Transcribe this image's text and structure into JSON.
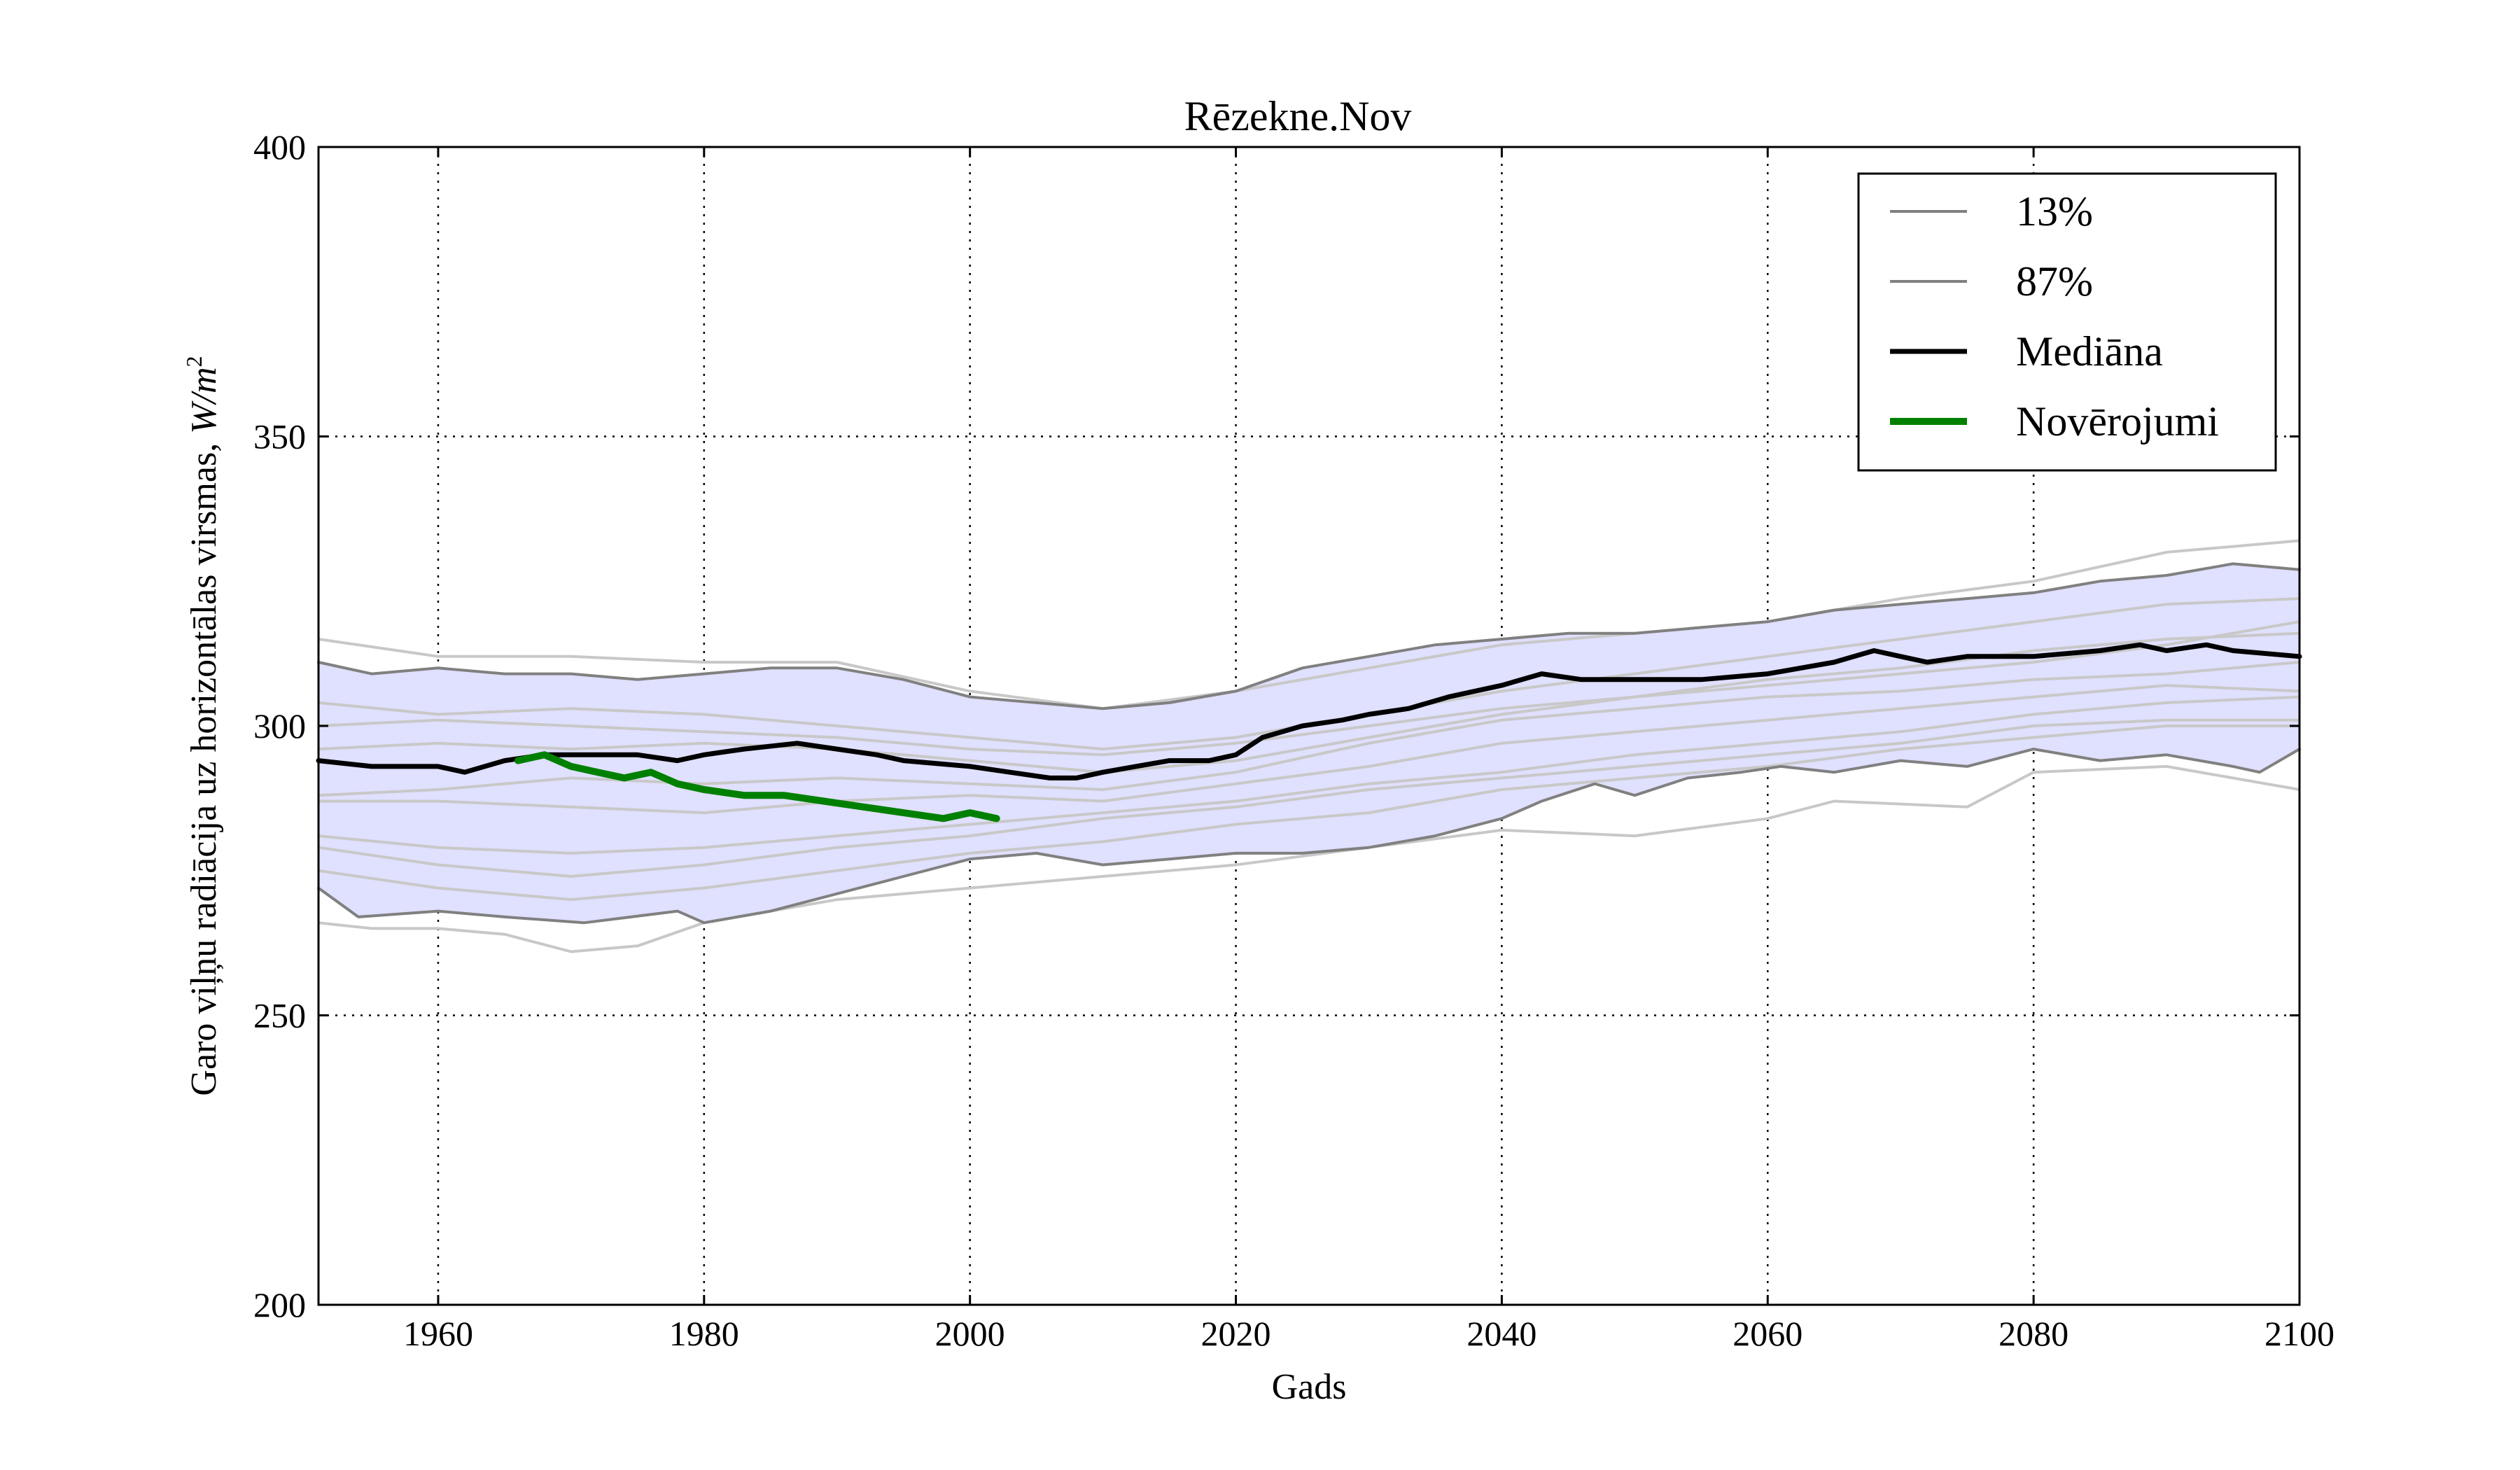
{
  "chart_data": {
    "type": "line",
    "title": "Rēzekne.Nov",
    "xlabel": "Gads",
    "ylabel": "Garo viļņu radiācija uz horizontālas virsmas, W/m²",
    "ylabel_text": "Garo viļņu radiācija uz horizontālas virsmas, ",
    "ylabel_unit": "W/m",
    "ylabel_exp": "2",
    "xlim": [
      1951,
      2100
    ],
    "ylim": [
      200,
      400
    ],
    "xticks": [
      1960,
      1980,
      2000,
      2020,
      2040,
      2060,
      2080,
      2100
    ],
    "yticks": [
      200,
      250,
      300,
      350,
      400
    ],
    "xtick_labels": [
      "1960",
      "1980",
      "2000",
      "2020",
      "2040",
      "2060",
      "2080",
      "2100"
    ],
    "ytick_labels": [
      "200",
      "250",
      "300",
      "350",
      "400"
    ],
    "grid": true,
    "legend_position": "top-right",
    "legend": [
      {
        "label": "13%",
        "color": "#808080"
      },
      {
        "label": "87%",
        "color": "#808080"
      },
      {
        "label": "Mediāna",
        "color": "#000000"
      },
      {
        "label": "Novērojumi",
        "color": "#008000"
      }
    ],
    "colors": {
      "band_fill": "#e0e0ff",
      "ensemble_line": "#c8c8c8",
      "percentile_line": "#808080",
      "median": "#000000",
      "observations": "#008000"
    },
    "series": [
      {
        "name": "13%",
        "points": [
          [
            1951,
            272
          ],
          [
            1954,
            267
          ],
          [
            1960,
            268
          ],
          [
            1965,
            267
          ],
          [
            1971,
            266
          ],
          [
            1978,
            268
          ],
          [
            1980,
            266
          ],
          [
            1985,
            268
          ],
          [
            1990,
            271
          ],
          [
            1995,
            274
          ],
          [
            2000,
            277
          ],
          [
            2005,
            278
          ],
          [
            2010,
            276
          ],
          [
            2015,
            277
          ],
          [
            2020,
            278
          ],
          [
            2025,
            278
          ],
          [
            2030,
            279
          ],
          [
            2035,
            281
          ],
          [
            2040,
            284
          ],
          [
            2043,
            287
          ],
          [
            2047,
            290
          ],
          [
            2050,
            288
          ],
          [
            2054,
            291
          ],
          [
            2058,
            292
          ],
          [
            2061,
            293
          ],
          [
            2065,
            292
          ],
          [
            2070,
            294
          ],
          [
            2075,
            293
          ],
          [
            2080,
            296
          ],
          [
            2085,
            294
          ],
          [
            2090,
            295
          ],
          [
            2095,
            293
          ],
          [
            2097,
            292
          ],
          [
            2100,
            296
          ]
        ]
      },
      {
        "name": "87%",
        "points": [
          [
            1951,
            311
          ],
          [
            1955,
            309
          ],
          [
            1960,
            310
          ],
          [
            1965,
            309
          ],
          [
            1970,
            309
          ],
          [
            1975,
            308
          ],
          [
            1980,
            309
          ],
          [
            1985,
            310
          ],
          [
            1990,
            310
          ],
          [
            1995,
            308
          ],
          [
            2000,
            305
          ],
          [
            2005,
            304
          ],
          [
            2010,
            303
          ],
          [
            2015,
            304
          ],
          [
            2020,
            306
          ],
          [
            2025,
            310
          ],
          [
            2030,
            312
          ],
          [
            2035,
            314
          ],
          [
            2040,
            315
          ],
          [
            2045,
            316
          ],
          [
            2050,
            316
          ],
          [
            2055,
            317
          ],
          [
            2060,
            318
          ],
          [
            2065,
            320
          ],
          [
            2070,
            321
          ],
          [
            2075,
            322
          ],
          [
            2080,
            323
          ],
          [
            2085,
            325
          ],
          [
            2090,
            326
          ],
          [
            2095,
            328
          ],
          [
            2100,
            327
          ]
        ]
      },
      {
        "name": "Mediāna",
        "points": [
          [
            1951,
            294
          ],
          [
            1955,
            293
          ],
          [
            1960,
            293
          ],
          [
            1962,
            292
          ],
          [
            1965,
            294
          ],
          [
            1968,
            295
          ],
          [
            1970,
            295
          ],
          [
            1975,
            295
          ],
          [
            1978,
            294
          ],
          [
            1980,
            295
          ],
          [
            1983,
            296
          ],
          [
            1987,
            297
          ],
          [
            1990,
            296
          ],
          [
            1993,
            295
          ],
          [
            1995,
            294
          ],
          [
            2000,
            293
          ],
          [
            2003,
            292
          ],
          [
            2006,
            291
          ],
          [
            2008,
            291
          ],
          [
            2010,
            292
          ],
          [
            2015,
            294
          ],
          [
            2018,
            294
          ],
          [
            2020,
            295
          ],
          [
            2022,
            298
          ],
          [
            2025,
            300
          ],
          [
            2028,
            301
          ],
          [
            2030,
            302
          ],
          [
            2033,
            303
          ],
          [
            2036,
            305
          ],
          [
            2040,
            307
          ],
          [
            2043,
            309
          ],
          [
            2046,
            308
          ],
          [
            2050,
            308
          ],
          [
            2055,
            308
          ],
          [
            2060,
            309
          ],
          [
            2065,
            311
          ],
          [
            2068,
            313
          ],
          [
            2070,
            312
          ],
          [
            2072,
            311
          ],
          [
            2075,
            312
          ],
          [
            2078,
            312
          ],
          [
            2080,
            312
          ],
          [
            2085,
            313
          ],
          [
            2088,
            314
          ],
          [
            2090,
            313
          ],
          [
            2093,
            314
          ],
          [
            2095,
            313
          ],
          [
            2100,
            312
          ]
        ]
      },
      {
        "name": "Novērojumi",
        "points": [
          [
            1966,
            294
          ],
          [
            1968,
            295
          ],
          [
            1970,
            293
          ],
          [
            1972,
            292
          ],
          [
            1974,
            291
          ],
          [
            1976,
            292
          ],
          [
            1978,
            290
          ],
          [
            1980,
            289
          ],
          [
            1983,
            288
          ],
          [
            1986,
            288
          ],
          [
            1989,
            287
          ],
          [
            1992,
            286
          ],
          [
            1995,
            285
          ],
          [
            1998,
            284
          ],
          [
            2000,
            285
          ],
          [
            2002,
            284
          ]
        ]
      }
    ],
    "ensemble": [
      {
        "points": [
          [
            1951,
            315
          ],
          [
            1960,
            312
          ],
          [
            1970,
            312
          ],
          [
            1980,
            311
          ],
          [
            1990,
            311
          ],
          [
            2000,
            306
          ],
          [
            2010,
            303
          ],
          [
            2020,
            306
          ],
          [
            2030,
            310
          ],
          [
            2040,
            314
          ],
          [
            2050,
            316
          ],
          [
            2060,
            318
          ],
          [
            2070,
            322
          ],
          [
            2080,
            325
          ],
          [
            2090,
            330
          ],
          [
            2100,
            332
          ]
        ]
      },
      {
        "points": [
          [
            1951,
            304
          ],
          [
            1960,
            302
          ],
          [
            1970,
            303
          ],
          [
            1980,
            302
          ],
          [
            1990,
            300
          ],
          [
            2000,
            298
          ],
          [
            2010,
            296
          ],
          [
            2020,
            298
          ],
          [
            2030,
            302
          ],
          [
            2040,
            306
          ],
          [
            2050,
            309
          ],
          [
            2060,
            312
          ],
          [
            2070,
            315
          ],
          [
            2080,
            318
          ],
          [
            2090,
            321
          ],
          [
            2100,
            322
          ]
        ]
      },
      {
        "points": [
          [
            1951,
            300
          ],
          [
            1960,
            301
          ],
          [
            1970,
            300
          ],
          [
            1980,
            299
          ],
          [
            1990,
            298
          ],
          [
            2000,
            296
          ],
          [
            2010,
            295
          ],
          [
            2020,
            297
          ],
          [
            2030,
            300
          ],
          [
            2040,
            303
          ],
          [
            2050,
            305
          ],
          [
            2060,
            307
          ],
          [
            2070,
            309
          ],
          [
            2080,
            311
          ],
          [
            2090,
            314
          ],
          [
            2100,
            318
          ]
        ]
      },
      {
        "points": [
          [
            1951,
            288
          ],
          [
            1960,
            289
          ],
          [
            1970,
            291
          ],
          [
            1980,
            290
          ],
          [
            1990,
            291
          ],
          [
            2000,
            290
          ],
          [
            2010,
            289
          ],
          [
            2020,
            292
          ],
          [
            2030,
            297
          ],
          [
            2040,
            301
          ],
          [
            2050,
            303
          ],
          [
            2060,
            305
          ],
          [
            2070,
            306
          ],
          [
            2080,
            308
          ],
          [
            2090,
            309
          ],
          [
            2100,
            311
          ]
        ]
      },
      {
        "points": [
          [
            1951,
            287
          ],
          [
            1960,
            287
          ],
          [
            1970,
            286
          ],
          [
            1980,
            285
          ],
          [
            1990,
            287
          ],
          [
            2000,
            288
          ],
          [
            2010,
            287
          ],
          [
            2020,
            290
          ],
          [
            2030,
            293
          ],
          [
            2040,
            297
          ],
          [
            2050,
            299
          ],
          [
            2060,
            301
          ],
          [
            2070,
            303
          ],
          [
            2080,
            305
          ],
          [
            2090,
            307
          ],
          [
            2100,
            306
          ]
        ]
      },
      {
        "points": [
          [
            1951,
            281
          ],
          [
            1960,
            279
          ],
          [
            1970,
            278
          ],
          [
            1980,
            279
          ],
          [
            1990,
            281
          ],
          [
            2000,
            283
          ],
          [
            2010,
            285
          ],
          [
            2020,
            287
          ],
          [
            2030,
            290
          ],
          [
            2040,
            292
          ],
          [
            2050,
            295
          ],
          [
            2060,
            297
          ],
          [
            2070,
            299
          ],
          [
            2080,
            302
          ],
          [
            2090,
            304
          ],
          [
            2100,
            305
          ]
        ]
      },
      {
        "points": [
          [
            1951,
            279
          ],
          [
            1960,
            276
          ],
          [
            1970,
            274
          ],
          [
            1980,
            276
          ],
          [
            1990,
            279
          ],
          [
            2000,
            281
          ],
          [
            2010,
            284
          ],
          [
            2020,
            286
          ],
          [
            2030,
            289
          ],
          [
            2040,
            291
          ],
          [
            2050,
            293
          ],
          [
            2060,
            295
          ],
          [
            2070,
            297
          ],
          [
            2080,
            300
          ],
          [
            2090,
            301
          ],
          [
            2100,
            301
          ]
        ]
      },
      {
        "points": [
          [
            1951,
            266
          ],
          [
            1955,
            265
          ],
          [
            1960,
            265
          ],
          [
            1965,
            264
          ],
          [
            1970,
            261
          ],
          [
            1975,
            262
          ],
          [
            1980,
            266
          ],
          [
            1990,
            270
          ],
          [
            2000,
            272
          ],
          [
            2010,
            274
          ],
          [
            2020,
            276
          ],
          [
            2030,
            279
          ],
          [
            2040,
            282
          ],
          [
            2050,
            281
          ],
          [
            2060,
            284
          ],
          [
            2065,
            287
          ],
          [
            2075,
            286
          ],
          [
            2080,
            292
          ],
          [
            2090,
            293
          ],
          [
            2100,
            289
          ]
        ]
      },
      {
        "points": [
          [
            1951,
            275
          ],
          [
            1960,
            272
          ],
          [
            1970,
            270
          ],
          [
            1980,
            272
          ],
          [
            1990,
            275
          ],
          [
            2000,
            278
          ],
          [
            2010,
            280
          ],
          [
            2020,
            283
          ],
          [
            2030,
            285
          ],
          [
            2040,
            289
          ],
          [
            2050,
            291
          ],
          [
            2060,
            293
          ],
          [
            2070,
            296
          ],
          [
            2080,
            298
          ],
          [
            2090,
            300
          ],
          [
            2100,
            300
          ]
        ]
      },
      {
        "points": [
          [
            1951,
            296
          ],
          [
            1960,
            297
          ],
          [
            1970,
            296
          ],
          [
            1980,
            297
          ],
          [
            1990,
            296
          ],
          [
            2000,
            294
          ],
          [
            2010,
            292
          ],
          [
            2020,
            294
          ],
          [
            2030,
            298
          ],
          [
            2040,
            302
          ],
          [
            2050,
            305
          ],
          [
            2060,
            308
          ],
          [
            2070,
            310
          ],
          [
            2080,
            313
          ],
          [
            2090,
            315
          ],
          [
            2100,
            316
          ]
        ]
      }
    ],
    "band": {
      "lower_series": "13%",
      "upper_series": "87%"
    }
  }
}
